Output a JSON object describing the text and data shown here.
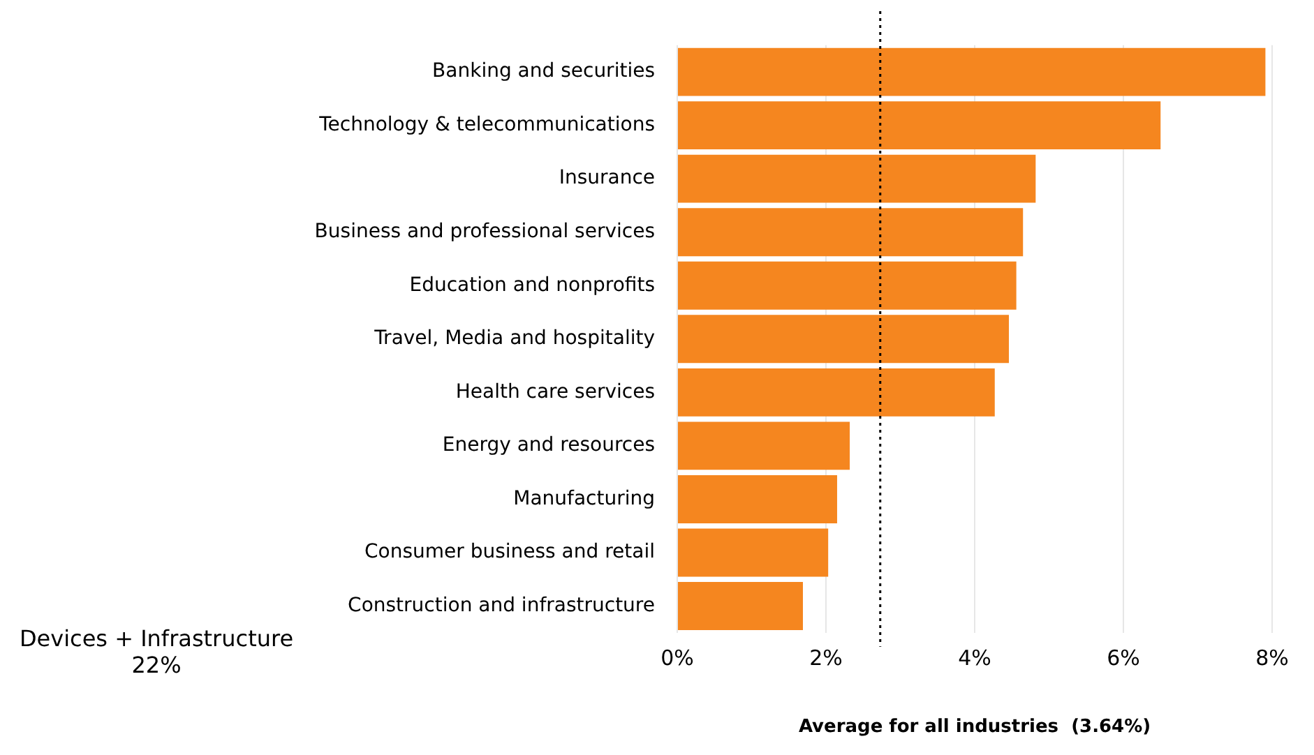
{
  "chart_data": {
    "type": "bar",
    "orientation": "horizontal",
    "xlabel": "Average for all industries  (3.64%)",
    "categories": [
      "Banking and securities",
      "Technology & telecommunications",
      "Insurance",
      "Business and professional services",
      "Education and nonprofits",
      "Travel, Media and hospitality",
      "Health care services",
      "Energy and resources",
      "Manufacturing",
      "Consumer business and retail",
      "Construction and infrastructure"
    ],
    "values": [
      7.91,
      6.5,
      4.82,
      4.65,
      4.56,
      4.46,
      4.27,
      2.32,
      2.15,
      2.03,
      1.69
    ],
    "color": "#f5861f",
    "xlim": [
      0,
      8
    ],
    "xticks": [
      {
        "value": 0,
        "label": "0%"
      },
      {
        "value": 2,
        "label": "2%"
      },
      {
        "value": 4,
        "label": "4%"
      },
      {
        "value": 6,
        "label": "6%"
      },
      {
        "value": 8,
        "label": "8%"
      }
    ],
    "grid": "x",
    "legend": false,
    "ref_lines": [
      {
        "axis": "x",
        "value": 2.73,
        "color": "#000000",
        "line_style": "dotted"
      }
    ],
    "annotations": [
      "Devices + Infrastructure",
      "22%"
    ]
  }
}
